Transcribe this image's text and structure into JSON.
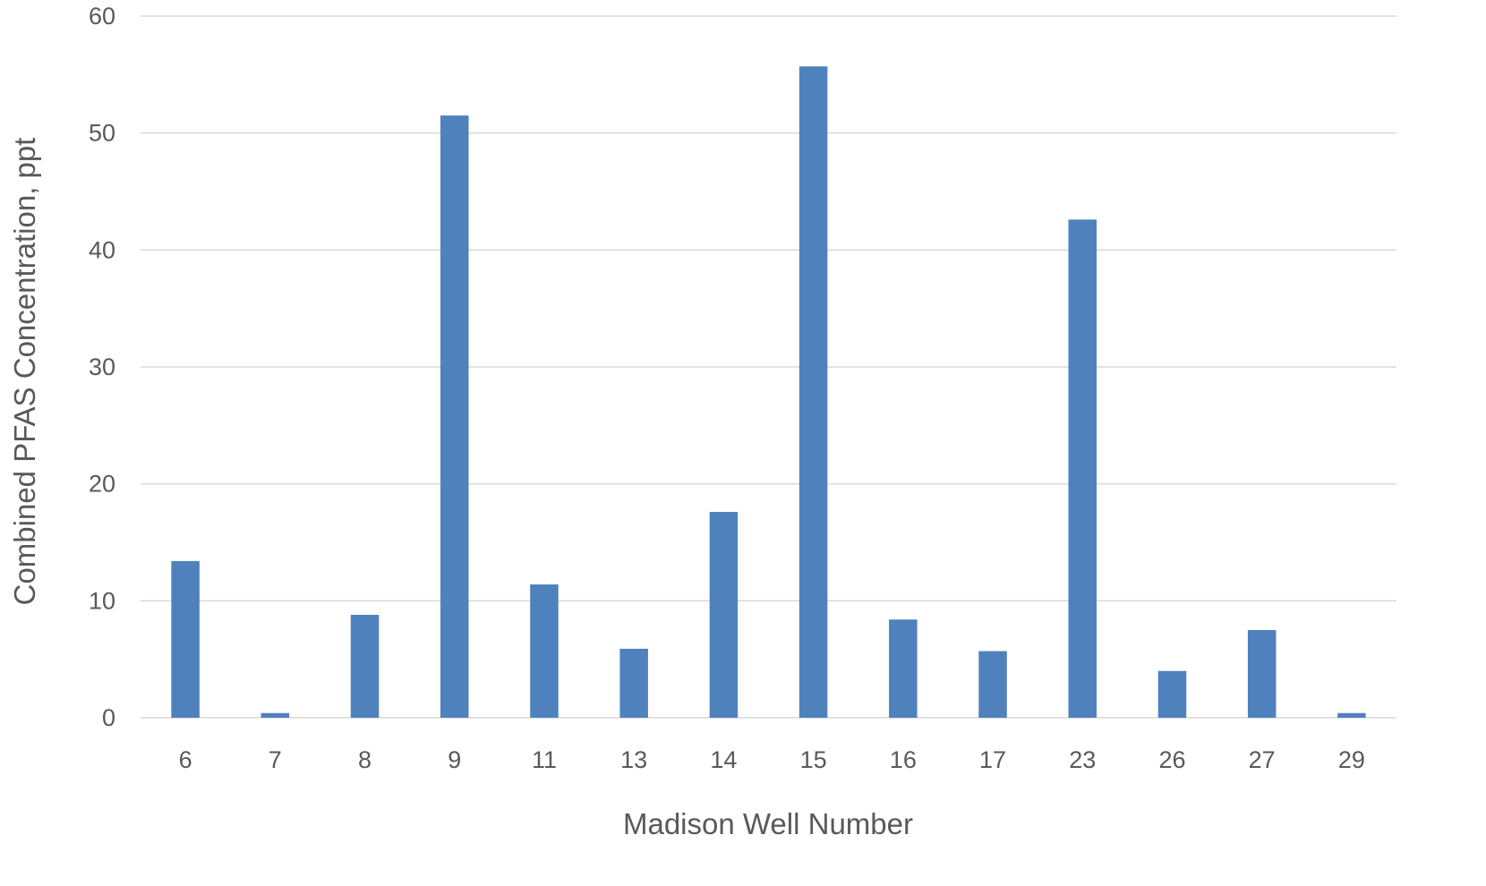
{
  "chart_data": {
    "type": "bar",
    "title": "",
    "xlabel": "Madison Well Number",
    "ylabel": "Combined PFAS Concentration, ppt",
    "categories": [
      "6",
      "7",
      "8",
      "9",
      "11",
      "13",
      "14",
      "15",
      "16",
      "17",
      "23",
      "26",
      "27",
      "29"
    ],
    "values": [
      13.4,
      0.4,
      8.8,
      51.5,
      11.4,
      5.9,
      17.6,
      55.7,
      8.4,
      5.7,
      42.6,
      4.0,
      7.5,
      0.4
    ],
    "ylim": [
      0,
      60
    ],
    "yticks": [
      0,
      10,
      20,
      30,
      40,
      50,
      60
    ],
    "grid": true,
    "legend": "none",
    "bar_color": "#4f81bd"
  }
}
